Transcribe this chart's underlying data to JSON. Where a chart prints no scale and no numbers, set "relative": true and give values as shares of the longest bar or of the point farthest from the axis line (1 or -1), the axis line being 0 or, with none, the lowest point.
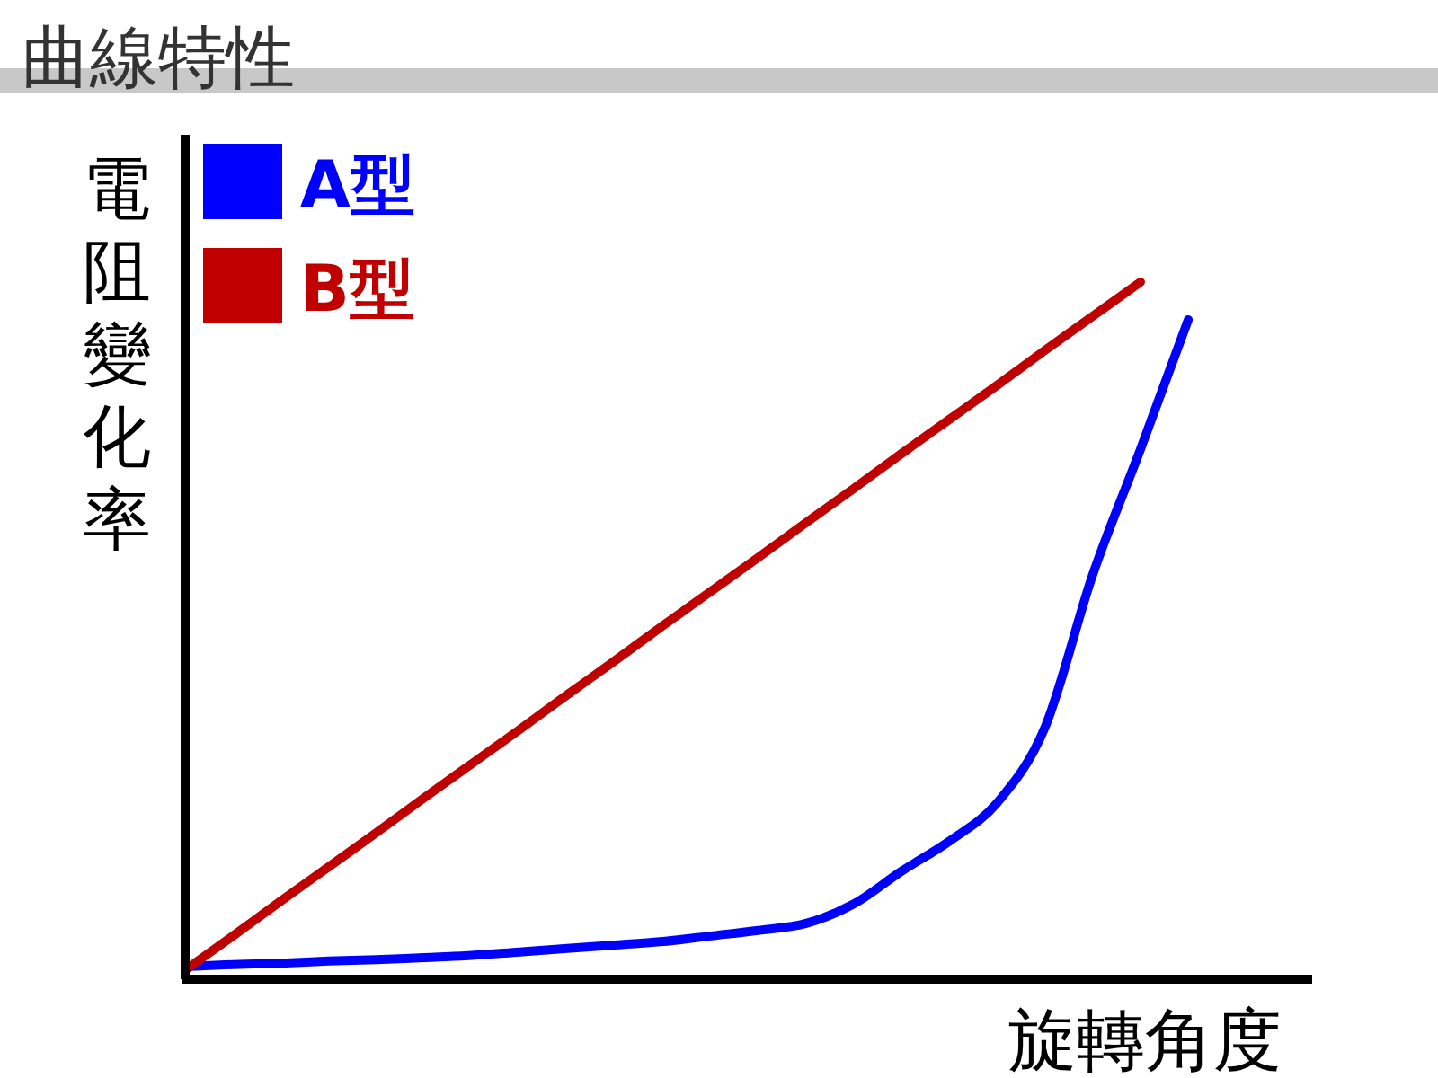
{
  "chart_data": {
    "type": "line",
    "title": "曲線特性",
    "xlabel": "旋轉角度",
    "ylabel": "電阻變化率",
    "relative": true,
    "legend": "top left",
    "marker": "none",
    "line_style": "solid",
    "categories": [
      null,
      null,
      null,
      null,
      null,
      null,
      null,
      null,
      null,
      null,
      null,
      null,
      null,
      null,
      null,
      null,
      null,
      null,
      null,
      null,
      null,
      null
    ],
    "series": [
      {
        "name": "A型",
        "color": "#0000ff",
        "values": [
          0.018,
          0.021,
          0.023,
          0.026,
          0.028,
          0.031,
          0.034,
          0.039,
          0.044,
          0.049,
          0.054,
          0.062,
          0.07,
          0.08,
          0.108,
          0.155,
          0.198,
          0.253,
          0.361,
          0.58,
          0.76,
          0.946
        ]
      },
      {
        "name": "B型",
        "color": "#c00000",
        "values": [
          0.013,
          0.062,
          0.112,
          0.161,
          0.21,
          0.26,
          0.309,
          0.358,
          0.408,
          0.457,
          0.507,
          0.556,
          0.605,
          0.655,
          0.704,
          0.754,
          0.803,
          0.852,
          0.902,
          0.951,
          1.0,
          null
        ]
      }
    ]
  }
}
